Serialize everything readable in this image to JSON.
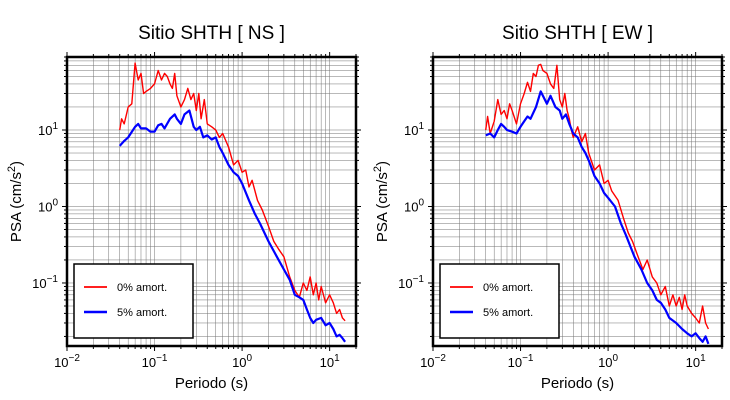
{
  "chart_data": [
    {
      "type": "line",
      "title": "Sitio SHTH [ NS ]",
      "xlabel": "Periodo (s)",
      "ylabel": "PSA (cm/s²)",
      "ylabel_main": "PSA (cm/s",
      "ylabel_sup": "2",
      "ylabel_end": ")",
      "xscale": "log",
      "yscale": "log",
      "xlim": [
        0.01,
        20
      ],
      "ylim": [
        0.015,
        90
      ],
      "xticks": [
        {
          "value": 0.01,
          "base": "10",
          "exp": "−2"
        },
        {
          "value": 0.1,
          "base": "10",
          "exp": "−1"
        },
        {
          "value": 1,
          "base": "10",
          "exp": "0"
        },
        {
          "value": 10,
          "base": "10",
          "exp": "1"
        }
      ],
      "yticks": [
        {
          "value": 0.1,
          "base": "10",
          "exp": "−1"
        },
        {
          "value": 1,
          "base": "10",
          "exp": "0"
        },
        {
          "value": 10,
          "base": "10",
          "exp": "1"
        }
      ],
      "grid": true,
      "legend_position": "bottom-left",
      "series": [
        {
          "name": "0% amort.",
          "color": "#ff0000",
          "points": [
            [
              0.04,
              10
            ],
            [
              0.042,
              14
            ],
            [
              0.045,
              12
            ],
            [
              0.05,
              20
            ],
            [
              0.055,
              22
            ],
            [
              0.06,
              75
            ],
            [
              0.065,
              45
            ],
            [
              0.07,
              55
            ],
            [
              0.075,
              30
            ],
            [
              0.08,
              32
            ],
            [
              0.09,
              35
            ],
            [
              0.1,
              40
            ],
            [
              0.11,
              60
            ],
            [
              0.12,
              45
            ],
            [
              0.13,
              55
            ],
            [
              0.14,
              50
            ],
            [
              0.15,
              40
            ],
            [
              0.16,
              35
            ],
            [
              0.17,
              55
            ],
            [
              0.18,
              28
            ],
            [
              0.2,
              20
            ],
            [
              0.22,
              25
            ],
            [
              0.24,
              35
            ],
            [
              0.26,
              25
            ],
            [
              0.28,
              30
            ],
            [
              0.3,
              18
            ],
            [
              0.32,
              30
            ],
            [
              0.34,
              14
            ],
            [
              0.37,
              25
            ],
            [
              0.4,
              12
            ],
            [
              0.45,
              11
            ],
            [
              0.5,
              10
            ],
            [
              0.55,
              8
            ],
            [
              0.6,
              9
            ],
            [
              0.7,
              6
            ],
            [
              0.8,
              3.5
            ],
            [
              0.9,
              4
            ],
            [
              1.0,
              2.8
            ],
            [
              1.1,
              3
            ],
            [
              1.2,
              1.8
            ],
            [
              1.3,
              2.2
            ],
            [
              1.5,
              1.2
            ],
            [
              1.7,
              0.9
            ],
            [
              2.0,
              0.55
            ],
            [
              2.3,
              0.35
            ],
            [
              2.6,
              0.28
            ],
            [
              3.0,
              0.22
            ],
            [
              3.5,
              0.12
            ],
            [
              4.0,
              0.08
            ],
            [
              4.5,
              0.065
            ],
            [
              5.0,
              0.1
            ],
            [
              5.5,
              0.08
            ],
            [
              6.0,
              0.12
            ],
            [
              6.5,
              0.07
            ],
            [
              7.0,
              0.1
            ],
            [
              7.5,
              0.06
            ],
            [
              8.0,
              0.09
            ],
            [
              9.0,
              0.055
            ],
            [
              10,
              0.07
            ],
            [
              11,
              0.055
            ],
            [
              12,
              0.04
            ],
            [
              13,
              0.045
            ],
            [
              14,
              0.035
            ],
            [
              15,
              0.032
            ]
          ]
        },
        {
          "name": "5% amort.",
          "color": "#0000ff",
          "points": [
            [
              0.04,
              6.2
            ],
            [
              0.045,
              7.2
            ],
            [
              0.05,
              8
            ],
            [
              0.06,
              11
            ],
            [
              0.065,
              12
            ],
            [
              0.07,
              10.5
            ],
            [
              0.08,
              10.5
            ],
            [
              0.09,
              9.5
            ],
            [
              0.1,
              9.5
            ],
            [
              0.11,
              11.5
            ],
            [
              0.12,
              12
            ],
            [
              0.13,
              10.5
            ],
            [
              0.15,
              14
            ],
            [
              0.17,
              16
            ],
            [
              0.18,
              14
            ],
            [
              0.2,
              12
            ],
            [
              0.22,
              16
            ],
            [
              0.25,
              18
            ],
            [
              0.28,
              11
            ],
            [
              0.3,
              10
            ],
            [
              0.33,
              11
            ],
            [
              0.36,
              8
            ],
            [
              0.4,
              8.5
            ],
            [
              0.45,
              7.5
            ],
            [
              0.5,
              8
            ],
            [
              0.55,
              6
            ],
            [
              0.6,
              5
            ],
            [
              0.7,
              3.5
            ],
            [
              0.8,
              2.8
            ],
            [
              0.9,
              2.5
            ],
            [
              1.0,
              2
            ],
            [
              1.2,
              1.2
            ],
            [
              1.4,
              0.8
            ],
            [
              1.6,
              0.6
            ],
            [
              2.0,
              0.35
            ],
            [
              2.5,
              0.22
            ],
            [
              3.0,
              0.15
            ],
            [
              3.5,
              0.11
            ],
            [
              4.0,
              0.07
            ],
            [
              4.5,
              0.065
            ],
            [
              5.0,
              0.06
            ],
            [
              5.5,
              0.045
            ],
            [
              6.0,
              0.035
            ],
            [
              6.5,
              0.03
            ],
            [
              7.0,
              0.033
            ],
            [
              8.0,
              0.035
            ],
            [
              9.0,
              0.028
            ],
            [
              10,
              0.03
            ],
            [
              11,
              0.025
            ],
            [
              12,
              0.02
            ],
            [
              13,
              0.021
            ],
            [
              14,
              0.019
            ],
            [
              15,
              0.017
            ]
          ]
        }
      ]
    },
    {
      "type": "line",
      "title": "Sitio SHTH [ EW ]",
      "xlabel": "Periodo (s)",
      "ylabel": "PSA (cm/s²)",
      "ylabel_main": "PSA (cm/s",
      "ylabel_sup": "2",
      "ylabel_end": ")",
      "xscale": "log",
      "yscale": "log",
      "xlim": [
        0.01,
        20
      ],
      "ylim": [
        0.015,
        90
      ],
      "xticks": [
        {
          "value": 0.01,
          "base": "10",
          "exp": "−2"
        },
        {
          "value": 0.1,
          "base": "10",
          "exp": "−1"
        },
        {
          "value": 1,
          "base": "10",
          "exp": "0"
        },
        {
          "value": 10,
          "base": "10",
          "exp": "1"
        }
      ],
      "yticks": [
        {
          "value": 0.1,
          "base": "10",
          "exp": "−1"
        },
        {
          "value": 1,
          "base": "10",
          "exp": "0"
        },
        {
          "value": 10,
          "base": "10",
          "exp": "1"
        }
      ],
      "grid": true,
      "legend_position": "bottom-left",
      "series": [
        {
          "name": "0% amort.",
          "color": "#ff0000",
          "points": [
            [
              0.04,
              10
            ],
            [
              0.042,
              15
            ],
            [
              0.045,
              9
            ],
            [
              0.05,
              13
            ],
            [
              0.055,
              25
            ],
            [
              0.06,
              16
            ],
            [
              0.065,
              18
            ],
            [
              0.07,
              14
            ],
            [
              0.075,
              22
            ],
            [
              0.08,
              18
            ],
            [
              0.09,
              12
            ],
            [
              0.1,
              22
            ],
            [
              0.11,
              30
            ],
            [
              0.12,
              42
            ],
            [
              0.13,
              32
            ],
            [
              0.14,
              55
            ],
            [
              0.15,
              50
            ],
            [
              0.16,
              70
            ],
            [
              0.17,
              72
            ],
            [
              0.18,
              60
            ],
            [
              0.2,
              55
            ],
            [
              0.22,
              40
            ],
            [
              0.24,
              35
            ],
            [
              0.26,
              70
            ],
            [
              0.28,
              25
            ],
            [
              0.3,
              20
            ],
            [
              0.32,
              30
            ],
            [
              0.34,
              18
            ],
            [
              0.36,
              14
            ],
            [
              0.38,
              10
            ],
            [
              0.4,
              8
            ],
            [
              0.45,
              11
            ],
            [
              0.5,
              7
            ],
            [
              0.55,
              9
            ],
            [
              0.6,
              5
            ],
            [
              0.7,
              3
            ],
            [
              0.8,
              3.5
            ],
            [
              0.9,
              2
            ],
            [
              1.0,
              2.2
            ],
            [
              1.1,
              1.6
            ],
            [
              1.3,
              1.2
            ],
            [
              1.5,
              0.7
            ],
            [
              1.7,
              0.45
            ],
            [
              1.9,
              0.35
            ],
            [
              2.2,
              0.22
            ],
            [
              2.5,
              0.15
            ],
            [
              2.8,
              0.2
            ],
            [
              3.2,
              0.12
            ],
            [
              3.6,
              0.1
            ],
            [
              4.0,
              0.07
            ],
            [
              4.5,
              0.09
            ],
            [
              5.0,
              0.05
            ],
            [
              5.5,
              0.07
            ],
            [
              6.0,
              0.05
            ],
            [
              6.5,
              0.065
            ],
            [
              7.0,
              0.045
            ],
            [
              7.5,
              0.07
            ],
            [
              8.0,
              0.05
            ],
            [
              9.0,
              0.04
            ],
            [
              10,
              0.035
            ],
            [
              11,
              0.03
            ],
            [
              12,
              0.05
            ],
            [
              13,
              0.03
            ],
            [
              14,
              0.025
            ]
          ]
        },
        {
          "name": "5% amort.",
          "color": "#0000ff",
          "points": [
            [
              0.04,
              8.5
            ],
            [
              0.045,
              9
            ],
            [
              0.05,
              8
            ],
            [
              0.055,
              10
            ],
            [
              0.06,
              12
            ],
            [
              0.065,
              11
            ],
            [
              0.07,
              10
            ],
            [
              0.08,
              9.5
            ],
            [
              0.09,
              9
            ],
            [
              0.1,
              11
            ],
            [
              0.11,
              13
            ],
            [
              0.12,
              15
            ],
            [
              0.13,
              14
            ],
            [
              0.15,
              20
            ],
            [
              0.17,
              32
            ],
            [
              0.18,
              28
            ],
            [
              0.2,
              22
            ],
            [
              0.22,
              28
            ],
            [
              0.25,
              20
            ],
            [
              0.28,
              18
            ],
            [
              0.3,
              14
            ],
            [
              0.33,
              16
            ],
            [
              0.36,
              12
            ],
            [
              0.4,
              9
            ],
            [
              0.45,
              8
            ],
            [
              0.5,
              6
            ],
            [
              0.55,
              5
            ],
            [
              0.6,
              4
            ],
            [
              0.7,
              2.5
            ],
            [
              0.8,
              2
            ],
            [
              0.9,
              1.5
            ],
            [
              1.0,
              1.3
            ],
            [
              1.2,
              1.0
            ],
            [
              1.4,
              0.6
            ],
            [
              1.6,
              0.42
            ],
            [
              1.8,
              0.3
            ],
            [
              2.0,
              0.22
            ],
            [
              2.4,
              0.15
            ],
            [
              2.8,
              0.1
            ],
            [
              3.2,
              0.08
            ],
            [
              3.6,
              0.06
            ],
            [
              4.0,
              0.055
            ],
            [
              4.5,
              0.045
            ],
            [
              5.0,
              0.035
            ],
            [
              6.0,
              0.03
            ],
            [
              7.0,
              0.025
            ],
            [
              8.0,
              0.022
            ],
            [
              9.0,
              0.02
            ],
            [
              10,
              0.022
            ],
            [
              11,
              0.019
            ],
            [
              12,
              0.017
            ],
            [
              13,
              0.02
            ],
            [
              14,
              0.016
            ]
          ]
        }
      ]
    }
  ]
}
